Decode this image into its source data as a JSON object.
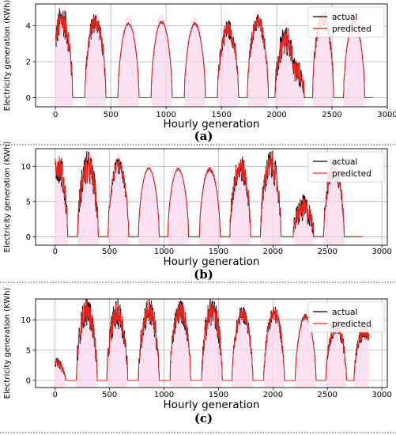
{
  "chart_data": [
    {
      "type": "line",
      "panel_label": "(a)",
      "xlabel": "Hourly generation",
      "ylabel": "Electricity generation (KWh)",
      "xlim": [
        -180,
        3000
      ],
      "ylim": [
        -0.5,
        5.2
      ],
      "x_ticks": [
        0,
        500,
        1000,
        1500,
        2000,
        2500,
        3000
      ],
      "y_ticks": [
        0,
        2,
        4
      ],
      "grid": true,
      "legend_position": "top-right",
      "series": [
        {
          "name": "actual",
          "color": "#000000"
        },
        {
          "name": "predicted",
          "color": "#e8231c"
        }
      ],
      "data_x_end": 2870,
      "day_peaks": [
        {
          "center": 60,
          "peak": 4.3,
          "noise": 0.9
        },
        {
          "center": 360,
          "peak": 4.2,
          "noise": 0.6
        },
        {
          "center": 660,
          "peak": 4.1,
          "noise": 0.05
        },
        {
          "center": 960,
          "peak": 4.2,
          "noise": 0.05
        },
        {
          "center": 1260,
          "peak": 4.1,
          "noise": 0.08
        },
        {
          "center": 1560,
          "peak": 3.8,
          "noise": 0.6
        },
        {
          "center": 1830,
          "peak": 4.2,
          "noise": 0.5
        },
        {
          "center": 2080,
          "peak": 3.1,
          "noise": 0.9
        },
        {
          "center": 2160,
          "peak": 1.5,
          "noise": 0.8
        },
        {
          "center": 2420,
          "peak": 4.5,
          "noise": 0.5
        },
        {
          "center": 2700,
          "peak": 4.2,
          "noise": 0.15
        }
      ]
    },
    {
      "type": "line",
      "panel_label": "(b)",
      "xlabel": "Hourly generation",
      "ylabel": "Electricity generation (KWh)",
      "xlim": [
        -180,
        3050
      ],
      "ylim": [
        -1.2,
        12.5
      ],
      "x_ticks": [
        0,
        500,
        1000,
        1500,
        2000,
        2500,
        3000
      ],
      "y_ticks": [
        0,
        5,
        10
      ],
      "grid": true,
      "legend_position": "top-right",
      "series": [
        {
          "name": "actual",
          "color": "#000000"
        },
        {
          "name": "predicted",
          "color": "#e8231c"
        }
      ],
      "data_x_end": 2820,
      "day_peaks": [
        {
          "center": 20,
          "peak": 10.2,
          "noise": 2.5
        },
        {
          "center": 300,
          "peak": 9.8,
          "noise": 2.5
        },
        {
          "center": 580,
          "peak": 10.0,
          "noise": 1.2
        },
        {
          "center": 860,
          "peak": 9.7,
          "noise": 0.1
        },
        {
          "center": 1130,
          "peak": 9.6,
          "noise": 0.1
        },
        {
          "center": 1420,
          "peak": 9.6,
          "noise": 0.3
        },
        {
          "center": 1700,
          "peak": 9.8,
          "noise": 2.0
        },
        {
          "center": 1980,
          "peak": 10.2,
          "noise": 2.2
        },
        {
          "center": 2280,
          "peak": 4.0,
          "noise": 2.0
        },
        {
          "center": 2560,
          "peak": 9.5,
          "noise": 1.5
        }
      ]
    },
    {
      "type": "line",
      "panel_label": "(c)",
      "xlabel": "Hourly generation",
      "ylabel": "Electricity generation (KWh)",
      "xlim": [
        -180,
        3050
      ],
      "ylim": [
        -1.2,
        13.5
      ],
      "x_ticks": [
        0,
        500,
        1000,
        1500,
        2000,
        2500,
        3000
      ],
      "y_ticks": [
        0,
        5,
        10
      ],
      "grid": true,
      "legend_position": "top-right",
      "series": [
        {
          "name": "actual",
          "color": "#000000"
        },
        {
          "name": "predicted",
          "color": "#e8231c"
        }
      ],
      "data_x_end": 2880,
      "day_peaks": [
        {
          "center": 0,
          "peak": 3.0,
          "noise": 0.8
        },
        {
          "center": 290,
          "peak": 11.5,
          "noise": 2.5
        },
        {
          "center": 570,
          "peak": 11.0,
          "noise": 2.5
        },
        {
          "center": 860,
          "peak": 11.5,
          "noise": 2.5
        },
        {
          "center": 1150,
          "peak": 11.5,
          "noise": 2.0
        },
        {
          "center": 1440,
          "peak": 11.5,
          "noise": 2.5
        },
        {
          "center": 1720,
          "peak": 11.0,
          "noise": 1.5
        },
        {
          "center": 2010,
          "peak": 11.0,
          "noise": 1.5
        },
        {
          "center": 2300,
          "peak": 10.5,
          "noise": 0.5
        },
        {
          "center": 2580,
          "peak": 9.0,
          "noise": 1.5
        },
        {
          "center": 2840,
          "peak": 8.0,
          "noise": 1.5
        }
      ]
    }
  ]
}
